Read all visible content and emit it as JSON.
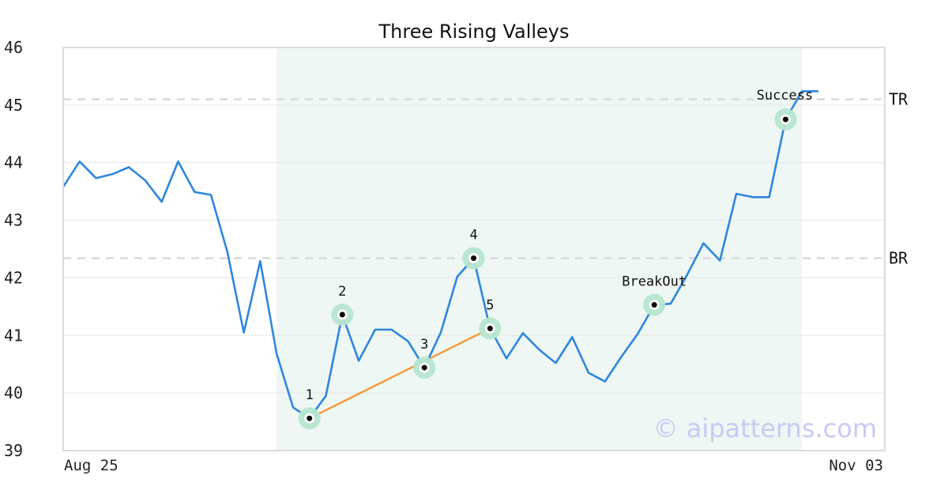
{
  "chart_data": {
    "type": "line",
    "title": "Three Rising Valleys",
    "ylim": [
      39,
      46
    ],
    "yticks": [
      39,
      40,
      41,
      42,
      43,
      44,
      45,
      46
    ],
    "x_labels": [
      "Aug 25",
      "Nov 03"
    ],
    "series": [
      {
        "values": [
          43.58,
          44.02,
          43.73,
          43.8,
          43.92,
          43.69,
          43.32,
          44.02,
          43.49,
          43.44,
          42.45,
          41.05,
          42.29,
          40.68,
          39.75,
          39.56,
          39.95,
          41.36,
          40.56,
          41.1,
          41.1,
          40.9,
          40.44,
          41.05,
          42.02,
          42.34,
          41.12,
          40.6,
          41.04,
          40.75,
          40.52,
          40.97,
          40.35,
          40.2,
          40.63,
          41.03,
          41.53,
          41.55,
          42.05,
          42.6,
          42.3,
          43.46,
          43.4,
          43.4,
          44.75,
          45.24,
          45.24
        ],
        "color": "#2e86de"
      }
    ],
    "pattern_window": {
      "from_index": 13,
      "to_index": 45,
      "color": "#eef7f3"
    },
    "reference_lines": [
      {
        "label": "TR",
        "value": 45.1
      },
      {
        "label": "BR",
        "value": 42.34
      }
    ],
    "trendline": {
      "from_index": 15,
      "to_index": 26,
      "color": "#f39c3d"
    },
    "points": [
      {
        "label": "1",
        "index": 15,
        "value": 39.56
      },
      {
        "label": "2",
        "index": 17,
        "value": 41.36
      },
      {
        "label": "3",
        "index": 22,
        "value": 40.44
      },
      {
        "label": "4",
        "index": 25,
        "value": 42.34
      },
      {
        "label": "5",
        "index": 26,
        "value": 41.12
      },
      {
        "label": "BreakOut",
        "index": 36,
        "value": 41.53
      },
      {
        "label": "Success",
        "index": 44,
        "value": 44.75
      }
    ],
    "watermark": "© aipatterns.com",
    "grid": true
  }
}
